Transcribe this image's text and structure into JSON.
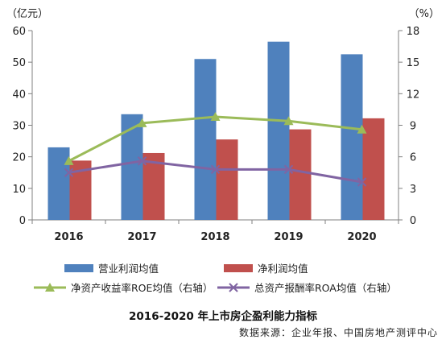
{
  "chart_data": {
    "type": "bar",
    "categories": [
      "2016",
      "2017",
      "2018",
      "2019",
      "2020"
    ],
    "series": [
      {
        "name": "营业利润均值",
        "kind": "bar",
        "axis": "left",
        "color": "#4f81bd",
        "values": [
          23,
          33.5,
          51,
          56.5,
          52.5
        ]
      },
      {
        "name": "净利润均值",
        "kind": "bar",
        "axis": "left",
        "color": "#c0504d",
        "values": [
          18.8,
          21.2,
          25.5,
          28.7,
          32.2
        ]
      },
      {
        "name": "净资产收益率ROE均值（右轴）",
        "kind": "line",
        "axis": "right",
        "color": "#9bbb59",
        "marker": "triangle",
        "values": [
          5.6,
          9.2,
          9.8,
          9.4,
          8.6
        ]
      },
      {
        "name": "总资产报酬率ROA均值（右轴）",
        "kind": "line",
        "axis": "right",
        "color": "#8064a2",
        "marker": "x",
        "values": [
          4.5,
          5.6,
          4.8,
          4.8,
          3.6
        ]
      }
    ],
    "y_left": {
      "unit": "（亿元）",
      "ylim": [
        0,
        60
      ],
      "ticks": [
        0,
        10,
        20,
        30,
        40,
        50,
        60
      ]
    },
    "y_right": {
      "unit": "（%）",
      "ylim": [
        0,
        18
      ],
      "ticks": [
        0,
        3,
        6,
        9,
        12,
        15,
        18
      ]
    },
    "grid": false,
    "legend_position": "bottom",
    "title": "2016-2020 年上市房企盈利能力指标",
    "source": "数据来源：企业年报、中国房地产测评中心"
  }
}
